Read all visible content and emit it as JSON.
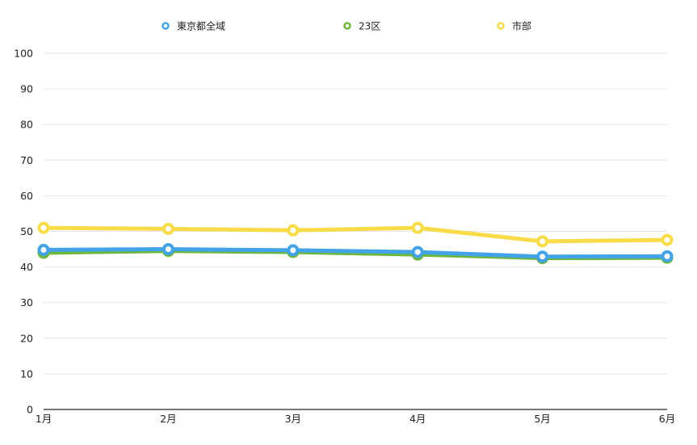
{
  "chart_data": {
    "type": "line",
    "categories": [
      "1月",
      "2月",
      "3月",
      "4月",
      "5月",
      "6月"
    ],
    "series": [
      {
        "name": "23区",
        "color": "#6cb83b",
        "values": [
          44.0,
          44.5,
          44.2,
          43.5,
          42.5,
          42.6
        ]
      },
      {
        "name": "東京都全域",
        "color": "#43a3e8",
        "values": [
          44.8,
          45.0,
          44.7,
          44.2,
          42.9,
          43.0
        ]
      },
      {
        "name": "市部",
        "color": "#f7dc47",
        "values": [
          51.0,
          50.7,
          50.3,
          51.0,
          47.2,
          47.6
        ]
      }
    ],
    "legend": [
      "東京都全域",
      "23区",
      "市部"
    ],
    "ylim": [
      0,
      100
    ],
    "yticks": [
      "0",
      "10",
      "20",
      "30",
      "40",
      "50",
      "60",
      "70",
      "80",
      "90",
      "100"
    ],
    "grid": true,
    "legend_position": "top-center",
    "title": "",
    "xlabel": "",
    "ylabel": ""
  }
}
